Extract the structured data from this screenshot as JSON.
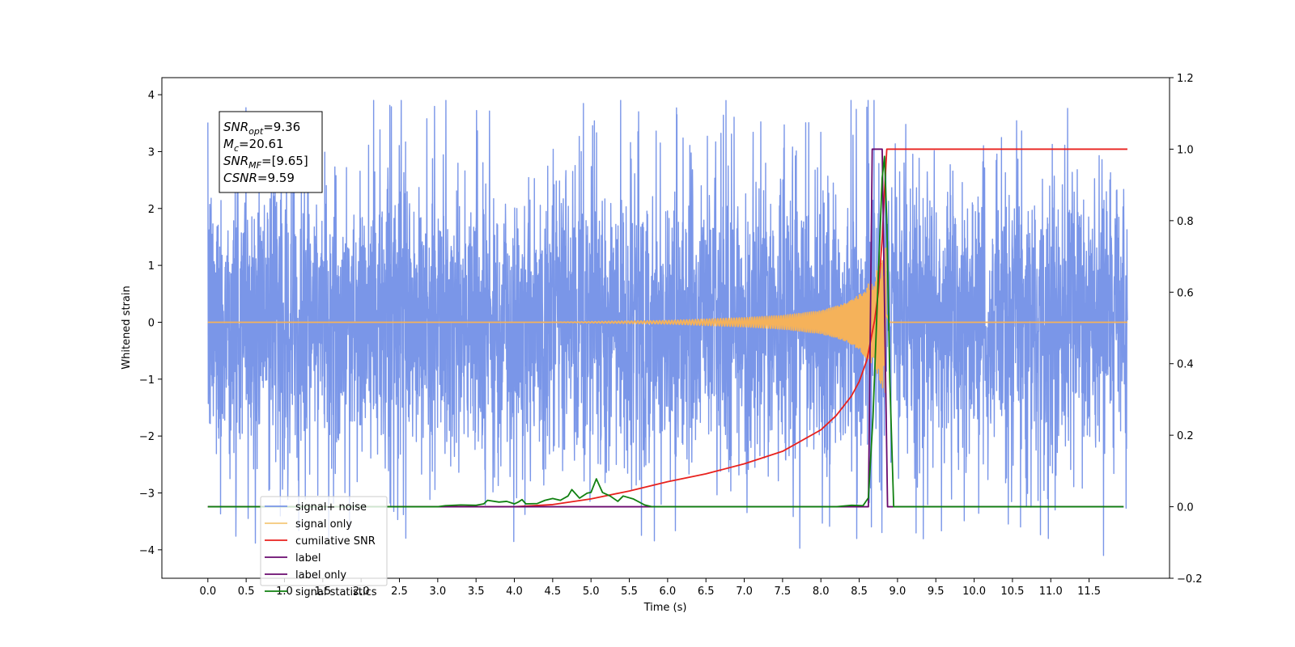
{
  "chart_data": {
    "type": "line",
    "xlabel": "Time (s)",
    "ylabel": "Whitened strain",
    "xlim": [
      -0.6,
      12.55
    ],
    "ylim": [
      -4.5,
      4.3
    ],
    "y2lim": [
      -0.2,
      1.2
    ],
    "x_ticks": [
      0.0,
      0.5,
      1.0,
      1.5,
      2.0,
      2.5,
      3.0,
      3.5,
      4.0,
      4.5,
      5.0,
      5.5,
      6.0,
      6.5,
      7.0,
      7.5,
      8.0,
      8.5,
      9.0,
      9.5,
      10.0,
      10.5,
      11.0,
      11.5
    ],
    "x_tick_labels": [
      "0.0",
      "0.5",
      "1.0",
      "1.5",
      "2.0",
      "2.5",
      "3.0",
      "3.5",
      "4.0",
      "4.5",
      "5.0",
      "5.5",
      "6.0",
      "6.5",
      "7.0",
      "7.5",
      "8.0",
      "8.5",
      "9.0",
      "9.5",
      "10.0",
      "10.5",
      "11.0",
      "11.5"
    ],
    "y_ticks": [
      4,
      3,
      2,
      1,
      0,
      -1,
      -2,
      -3,
      -4
    ],
    "y_tick_labels": [
      "4",
      "3",
      "2",
      "1",
      "0",
      "−1",
      "−2",
      "−3",
      "−4"
    ],
    "y2_ticks": [
      1.2,
      1.0,
      0.8,
      0.6,
      0.4,
      0.2,
      0.0,
      -0.2
    ],
    "y2_tick_labels": [
      "1.2",
      "1.0",
      "0.8",
      "0.6",
      "0.4",
      "0.2",
      "0.0",
      "−0.2"
    ],
    "grid": false,
    "legend_position": "lower-left",
    "annotation": {
      "lines": [
        {
          "base": "SNR",
          "sub": "opt",
          "rest": "=9.36"
        },
        {
          "base": "M",
          "sub": "c",
          "rest": "=20.61"
        },
        {
          "base": "SNR",
          "sub": "MF",
          "rest": "=[9.65]"
        },
        {
          "base": "CSNR",
          "sub": "",
          "rest": "=9.59"
        }
      ]
    },
    "series": [
      {
        "name": "signal+ noise",
        "axis": "left",
        "color": "#7a96e8",
        "kind": "noise",
        "x_range": [
          0.0,
          12.0
        ],
        "band_amplitude": 2.3,
        "spike_max": 3.9,
        "spike_min": -4.1
      },
      {
        "name": "signal only",
        "axis": "left",
        "color": "#f5b25a",
        "kind": "chirp",
        "x_range": [
          0.0,
          12.0
        ],
        "peak_time": 8.85,
        "amplitude_points": [
          [
            0.0,
            0.0
          ],
          [
            4.5,
            0.0
          ],
          [
            5.0,
            0.01
          ],
          [
            6.0,
            0.03
          ],
          [
            7.0,
            0.08
          ],
          [
            7.5,
            0.12
          ],
          [
            8.0,
            0.2
          ],
          [
            8.3,
            0.32
          ],
          [
            8.5,
            0.48
          ],
          [
            8.7,
            0.8
          ],
          [
            8.85,
            1.35
          ],
          [
            8.9,
            0.0
          ],
          [
            12.0,
            0.0
          ]
        ]
      },
      {
        "name": "cumilative SNR",
        "axis": "right",
        "color": "#e8211d",
        "kind": "line",
        "points": [
          [
            0.0,
            0.0
          ],
          [
            4.0,
            0.0
          ],
          [
            4.5,
            0.006
          ],
          [
            5.0,
            0.022
          ],
          [
            5.5,
            0.044
          ],
          [
            6.0,
            0.07
          ],
          [
            6.5,
            0.092
          ],
          [
            7.0,
            0.12
          ],
          [
            7.5,
            0.155
          ],
          [
            8.0,
            0.215
          ],
          [
            8.2,
            0.255
          ],
          [
            8.4,
            0.31
          ],
          [
            8.5,
            0.35
          ],
          [
            8.6,
            0.41
          ],
          [
            8.7,
            0.52
          ],
          [
            8.75,
            0.6
          ],
          [
            8.8,
            0.75
          ],
          [
            8.83,
            0.88
          ],
          [
            8.86,
            1.0
          ],
          [
            12.0,
            1.0
          ]
        ]
      },
      {
        "name": "label",
        "axis": "right",
        "color": "#6a0a6e",
        "kind": "line",
        "points": [
          [
            0.0,
            0.0
          ],
          [
            8.62,
            0.0
          ],
          [
            8.67,
            1.0
          ],
          [
            8.8,
            1.0
          ],
          [
            8.87,
            0.0
          ],
          [
            11.95,
            0.0
          ]
        ]
      },
      {
        "name": "signal statistics",
        "axis": "right",
        "color": "#108010",
        "kind": "line",
        "points": [
          [
            0.0,
            0.0
          ],
          [
            3.0,
            0.0
          ],
          [
            3.1,
            0.003
          ],
          [
            3.3,
            0.005
          ],
          [
            3.5,
            0.004
          ],
          [
            3.6,
            0.008
          ],
          [
            3.65,
            0.018
          ],
          [
            3.8,
            0.013
          ],
          [
            3.9,
            0.015
          ],
          [
            4.0,
            0.008
          ],
          [
            4.05,
            0.013
          ],
          [
            4.1,
            0.02
          ],
          [
            4.15,
            0.008
          ],
          [
            4.3,
            0.009
          ],
          [
            4.4,
            0.018
          ],
          [
            4.5,
            0.023
          ],
          [
            4.6,
            0.018
          ],
          [
            4.7,
            0.03
          ],
          [
            4.75,
            0.048
          ],
          [
            4.85,
            0.024
          ],
          [
            4.95,
            0.038
          ],
          [
            5.0,
            0.04
          ],
          [
            5.07,
            0.078
          ],
          [
            5.15,
            0.04
          ],
          [
            5.25,
            0.03
          ],
          [
            5.35,
            0.015
          ],
          [
            5.42,
            0.03
          ],
          [
            5.55,
            0.022
          ],
          [
            5.7,
            0.005
          ],
          [
            5.8,
            0.0
          ],
          [
            8.2,
            0.0
          ],
          [
            8.4,
            0.004
          ],
          [
            8.55,
            0.003
          ],
          [
            8.62,
            0.025
          ],
          [
            8.68,
            0.25
          ],
          [
            8.75,
            0.65
          ],
          [
            8.8,
            0.92
          ],
          [
            8.83,
            0.98
          ],
          [
            8.86,
            0.8
          ],
          [
            8.9,
            0.35
          ],
          [
            8.95,
            0.0
          ],
          [
            11.95,
            0.0
          ]
        ]
      }
    ],
    "legend": [
      {
        "label": "signal+ noise",
        "color": "#7a96e8"
      },
      {
        "label": "signal only",
        "color": "#f5c878"
      },
      {
        "label": "cumilative SNR",
        "color": "#e8211d"
      },
      {
        "label": "label",
        "color": "#6a0a6e"
      },
      {
        "label": "label only",
        "color": "#6a0a6e"
      },
      {
        "label": "signal statistics",
        "color": "#108010"
      }
    ]
  }
}
